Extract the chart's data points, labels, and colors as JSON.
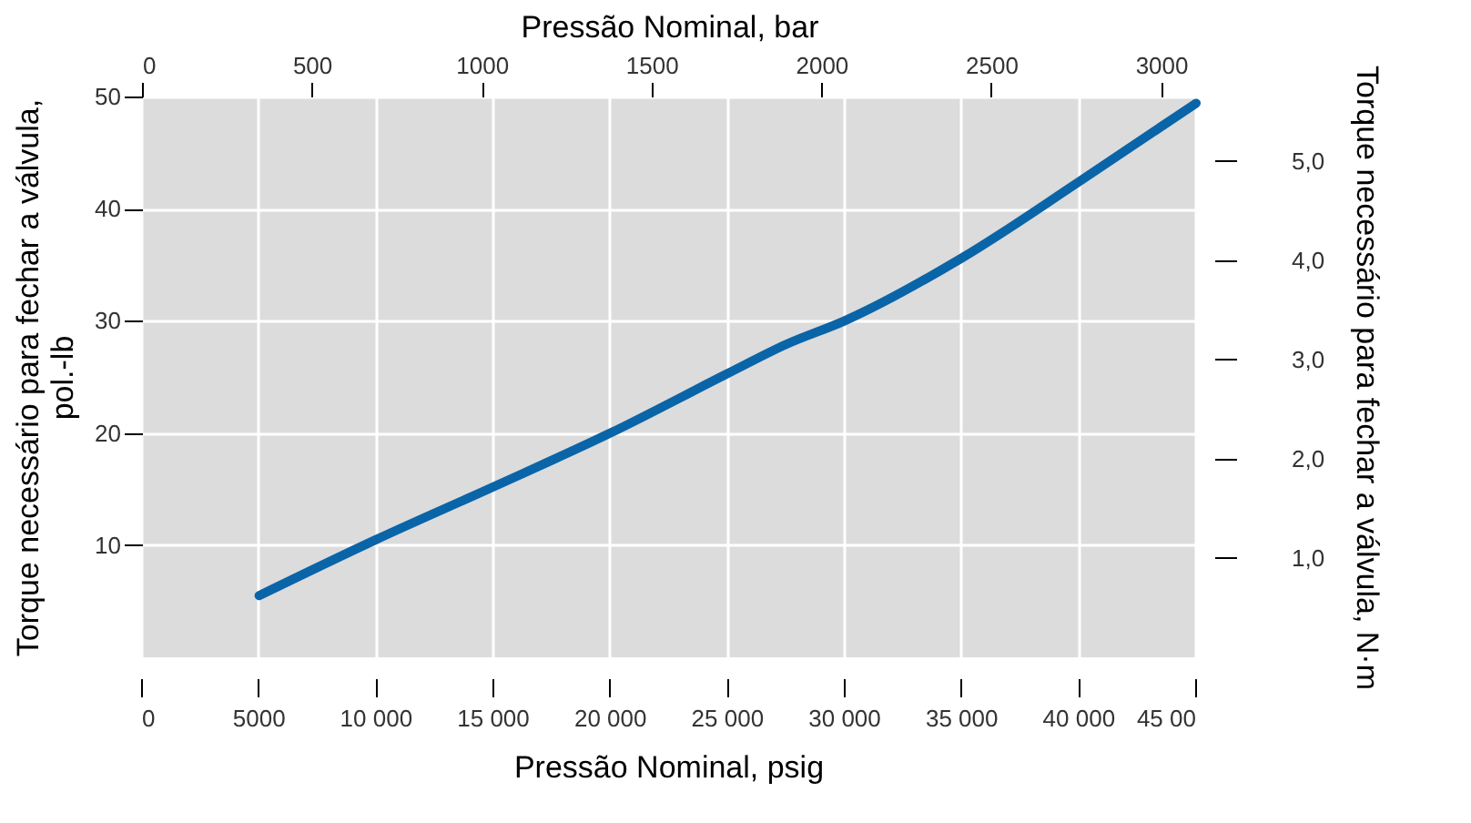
{
  "chart_data": {
    "type": "line",
    "xlabel": "Pressão Nominal, psig",
    "x2label": "Pressão Nominal, bar",
    "ylabel": "Torque necessário para fechar a válvula,\npol.-lb",
    "y2label": "Torque necessário para fechar a válvula, N·m",
    "xlim": [
      0,
      45000
    ],
    "xticks": [
      0,
      5000,
      {
        "value": 10000,
        "label": "10 000"
      },
      {
        "value": 15000,
        "label": "15 000"
      },
      {
        "value": 20000,
        "label": "20 000"
      },
      {
        "value": 25000,
        "label": "25 000"
      },
      {
        "value": 30000,
        "label": "30 000"
      },
      {
        "value": 35000,
        "label": "35 000"
      },
      {
        "value": 40000,
        "label": "40 000"
      },
      {
        "value": 45000,
        "label": "45 00"
      }
    ],
    "x2lim": [
      0,
      3103
    ],
    "x2ticks": [
      0,
      500,
      1000,
      1500,
      2000,
      2500,
      3000
    ],
    "ylim": [
      0,
      50
    ],
    "yticks": [
      10,
      20,
      30,
      40,
      50
    ],
    "y2lim": [
      0,
      5.65
    ],
    "y2ticks": [
      {
        "value": 1,
        "label": "1,0"
      },
      {
        "value": 2,
        "label": "2,0"
      },
      {
        "value": 3,
        "label": "3,0"
      },
      {
        "value": 4,
        "label": "4,0"
      },
      {
        "value": 5,
        "label": "5,0"
      }
    ],
    "grid": true,
    "marker": "none",
    "line_style": "solid",
    "x": [
      5000,
      10000,
      15000,
      20000,
      25000,
      27500,
      30000,
      35000,
      40000,
      45000
    ],
    "series": [
      {
        "color": "#0a64a8",
        "values": [
          5.5,
          10.5,
          15.2,
          20,
          25.3,
          27.9,
          30,
          35.6,
          42.4,
          49.4
        ]
      }
    ]
  }
}
